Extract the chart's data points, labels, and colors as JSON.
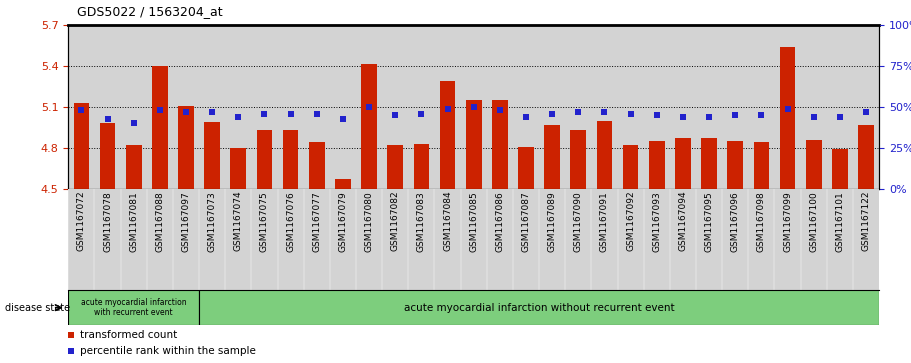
{
  "title": "GDS5022 / 1563204_at",
  "samples": [
    "GSM1167072",
    "GSM1167078",
    "GSM1167081",
    "GSM1167088",
    "GSM1167097",
    "GSM1167073",
    "GSM1167074",
    "GSM1167075",
    "GSM1167076",
    "GSM1167077",
    "GSM1167079",
    "GSM1167080",
    "GSM1167082",
    "GSM1167083",
    "GSM1167084",
    "GSM1167085",
    "GSM1167086",
    "GSM1167087",
    "GSM1167089",
    "GSM1167090",
    "GSM1167091",
    "GSM1167092",
    "GSM1167093",
    "GSM1167094",
    "GSM1167095",
    "GSM1167096",
    "GSM1167098",
    "GSM1167099",
    "GSM1167100",
    "GSM1167101",
    "GSM1167122"
  ],
  "bar_values": [
    5.13,
    4.98,
    4.82,
    5.4,
    5.11,
    4.99,
    4.8,
    4.93,
    4.93,
    4.84,
    4.57,
    5.42,
    4.82,
    4.83,
    5.29,
    5.15,
    5.15,
    4.81,
    4.97,
    4.93,
    5.0,
    4.82,
    4.85,
    4.87,
    4.87,
    4.85,
    4.84,
    5.54,
    4.86,
    4.79,
    4.97
  ],
  "percentile_values": [
    48,
    43,
    40,
    48,
    47,
    47,
    44,
    46,
    46,
    46,
    43,
    50,
    45,
    46,
    49,
    50,
    48,
    44,
    46,
    47,
    47,
    46,
    45,
    44,
    44,
    45,
    45,
    49,
    44,
    44,
    47
  ],
  "group1_count": 5,
  "group1_label": "acute myocardial infarction\nwith recurrent event",
  "group2_label": "acute myocardial infarction without recurrent event",
  "ylim_left": [
    4.5,
    5.7
  ],
  "ylim_right": [
    0,
    100
  ],
  "yticks_left": [
    4.5,
    4.8,
    5.1,
    5.4,
    5.7
  ],
  "yticks_right": [
    0,
    25,
    50,
    75,
    100
  ],
  "bar_color": "#cc2200",
  "dot_color": "#2222cc",
  "bg_color": "#d3d3d3",
  "group_bg": "#7dce7d",
  "legend_bar_label": "transformed count",
  "legend_dot_label": "percentile rank within the sample",
  "disease_state_label": "disease state"
}
